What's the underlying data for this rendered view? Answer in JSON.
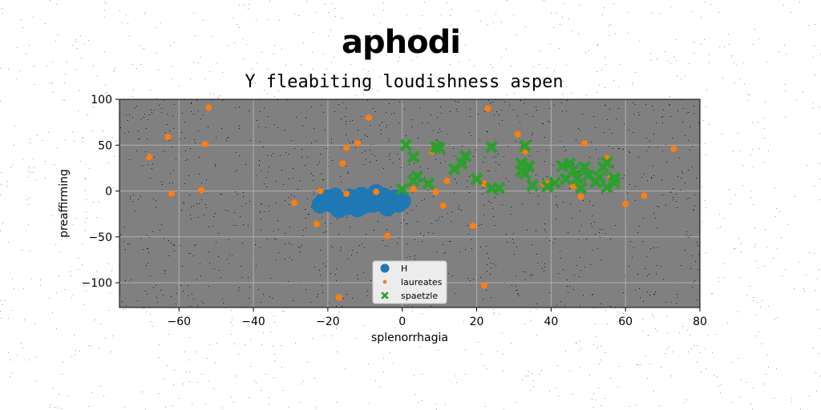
{
  "chart_data": {
    "type": "scatter",
    "title": "aphodi",
    "subtitle": "Y fleabiting loudishness aspen",
    "xlabel": "splenorrhagia",
    "ylabel": "preaffirming",
    "xlim": [
      -76,
      80
    ],
    "ylim": [
      -127,
      100
    ],
    "xticks": [
      -60,
      -40,
      -20,
      0,
      20,
      40,
      60,
      80
    ],
    "yticks": [
      -100,
      -50,
      0,
      50,
      100
    ],
    "grid": true,
    "legend_position": "lower-center",
    "background_color": "#808080",
    "series": [
      {
        "name": "H",
        "marker": "circle-large",
        "color": "#1f77b4",
        "points": [
          [
            -22,
            -15
          ],
          [
            -21,
            -10
          ],
          [
            -20,
            -8
          ],
          [
            -19,
            -14
          ],
          [
            -18,
            -6
          ],
          [
            -17,
            -20
          ],
          [
            -16,
            -12
          ],
          [
            -15,
            -17
          ],
          [
            -14,
            -7
          ],
          [
            -13,
            -11
          ],
          [
            -12,
            -19
          ],
          [
            -11,
            -5
          ],
          [
            -10,
            -15
          ],
          [
            -9,
            -9
          ],
          [
            -8,
            -14
          ],
          [
            -7,
            -2
          ],
          [
            -6,
            -12
          ],
          [
            -5,
            -6
          ],
          [
            -4,
            -18
          ],
          [
            -3,
            -13
          ],
          [
            -2,
            -8
          ],
          [
            -1,
            -14
          ],
          [
            0,
            -11
          ]
        ]
      },
      {
        "name": "laureates",
        "marker": "circle-small",
        "color": "#ff7f0e",
        "points": [
          [
            -68,
            37
          ],
          [
            -63,
            59
          ],
          [
            -62,
            -3
          ],
          [
            -54,
            1
          ],
          [
            -53,
            51
          ],
          [
            -52,
            91
          ],
          [
            -29,
            -13
          ],
          [
            -23,
            -36
          ],
          [
            -22,
            0
          ],
          [
            -17,
            -116
          ],
          [
            -16,
            30
          ],
          [
            -15,
            47
          ],
          [
            -15,
            -3
          ],
          [
            -12,
            52
          ],
          [
            -9,
            80
          ],
          [
            -7,
            -1
          ],
          [
            -4,
            -49
          ],
          [
            3,
            2
          ],
          [
            8,
            43
          ],
          [
            9,
            -1
          ],
          [
            11,
            -16
          ],
          [
            12,
            11
          ],
          [
            19,
            -38
          ],
          [
            22,
            8
          ],
          [
            22,
            -103
          ],
          [
            23,
            90
          ],
          [
            31,
            62
          ],
          [
            33,
            43
          ],
          [
            38,
            8
          ],
          [
            39,
            8
          ],
          [
            41,
            10
          ],
          [
            46,
            5
          ],
          [
            48,
            -6
          ],
          [
            49,
            52
          ],
          [
            55,
            36
          ],
          [
            56,
            15
          ],
          [
            60,
            -14
          ],
          [
            65,
            -5
          ],
          [
            73,
            46
          ]
        ]
      },
      {
        "name": "spaetzle",
        "marker": "x-filled",
        "color": "#2ca02c",
        "points": [
          [
            0,
            2
          ],
          [
            1,
            50
          ],
          [
            3,
            11
          ],
          [
            3,
            37
          ],
          [
            4,
            16
          ],
          [
            7,
            8
          ],
          [
            9,
            48
          ],
          [
            10,
            47
          ],
          [
            14,
            24
          ],
          [
            16,
            30
          ],
          [
            17,
            38
          ],
          [
            20,
            13
          ],
          [
            24,
            48
          ],
          [
            24,
            3
          ],
          [
            26,
            3
          ],
          [
            32,
            30
          ],
          [
            32,
            22
          ],
          [
            33,
            19
          ],
          [
            33,
            49
          ],
          [
            34,
            27
          ],
          [
            35,
            6
          ],
          [
            39,
            5
          ],
          [
            41,
            9
          ],
          [
            43,
            27
          ],
          [
            44,
            13
          ],
          [
            45,
            30
          ],
          [
            46,
            23
          ],
          [
            47,
            14
          ],
          [
            48,
            3
          ],
          [
            49,
            26
          ],
          [
            50,
            17
          ],
          [
            52,
            10
          ],
          [
            53,
            15
          ],
          [
            54,
            26
          ],
          [
            55,
            31
          ],
          [
            55,
            4
          ],
          [
            57,
            14
          ],
          [
            57,
            9
          ]
        ]
      }
    ]
  }
}
